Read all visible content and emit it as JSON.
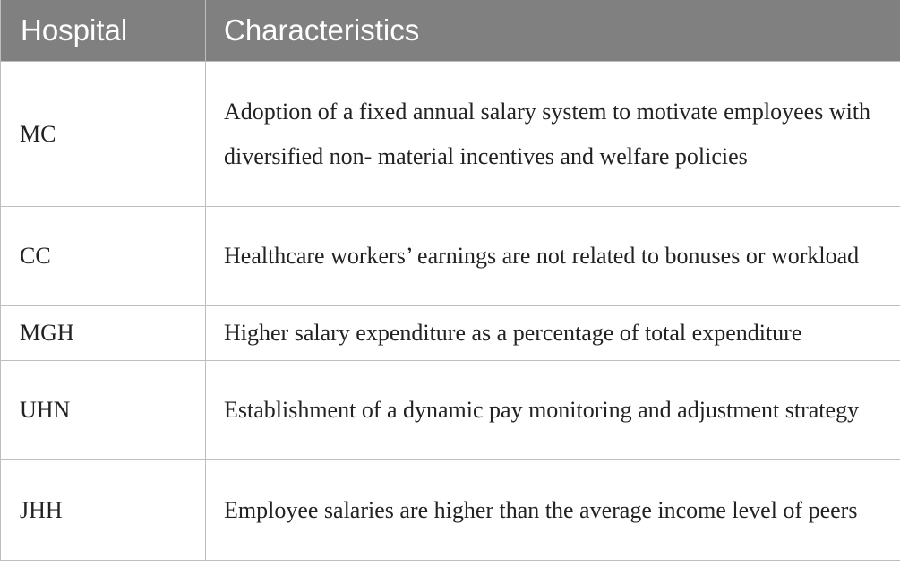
{
  "table": {
    "headers": [
      "Hospital",
      "Characteristics"
    ],
    "rows": [
      {
        "hospital": "MC",
        "characteristics": "Adoption of a fixed annual salary system to motivate employees with diversified non- material incentives and welfare policies"
      },
      {
        "hospital": "CC",
        "characteristics": "Healthcare workers’ earnings are not related to bonuses or workload"
      },
      {
        "hospital": "MGH",
        "characteristics": "Higher salary expenditure as a percentage of total expenditure"
      },
      {
        "hospital": "UHN",
        "characteristics": "Establishment of a dynamic pay monitoring and adjustment strategy"
      },
      {
        "hospital": "JHH",
        "characteristics": "Employee salaries are higher than the average income level of peers"
      }
    ]
  },
  "colors": {
    "header_bg": "#808080",
    "header_text": "#ffffff",
    "border": "#bdbdbd",
    "body_text": "#222222"
  }
}
